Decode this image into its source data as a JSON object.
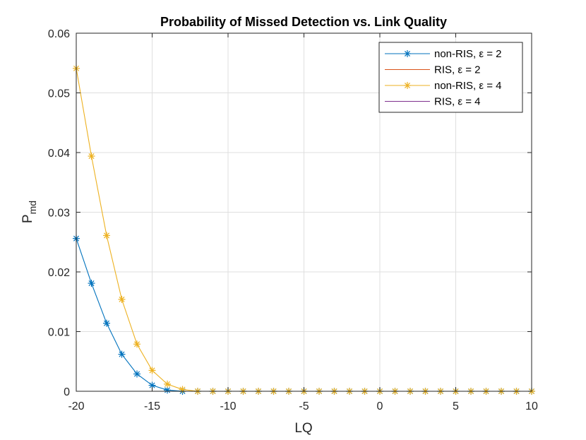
{
  "chart_data": {
    "type": "line",
    "title": "Probability of Missed Detection vs. Link Quality",
    "xlabel": "LQ",
    "ylabel_main": "P",
    "ylabel_sub": "md",
    "xlim": [
      -20,
      10
    ],
    "ylim": [
      0,
      0.06
    ],
    "xticks": [
      -20,
      -15,
      -10,
      -5,
      0,
      5,
      10
    ],
    "xtick_labels": [
      "-20",
      "-15",
      "-10",
      "-5",
      "0",
      "5",
      "10"
    ],
    "yticks": [
      0,
      0.01,
      0.02,
      0.03,
      0.04,
      0.05,
      0.06
    ],
    "ytick_labels": [
      "0",
      "0.01",
      "0.02",
      "0.03",
      "0.04",
      "0.05",
      "0.06"
    ],
    "grid": true,
    "legend_position": "top-right",
    "x": [
      -20,
      -19,
      -18,
      -17,
      -16,
      -15,
      -14,
      -13,
      -12,
      -11,
      -10,
      -9,
      -8,
      -7,
      -6,
      -5,
      -4,
      -3,
      -2,
      -1,
      0,
      1,
      2,
      3,
      4,
      5,
      6,
      7,
      8,
      9,
      10
    ],
    "series": [
      {
        "name": "non-RIS, ε = 2",
        "color": "#0072BD",
        "marker": "asterisk",
        "values": [
          0.0256,
          0.0181,
          0.0114,
          0.0062,
          0.0029,
          0.001,
          0.0002,
          0,
          0,
          0,
          0,
          0,
          0,
          0,
          0,
          0,
          0,
          0,
          0,
          0,
          0,
          0,
          0,
          0,
          0,
          0,
          0,
          0,
          0,
          0,
          0
        ]
      },
      {
        "name": "RIS, ε = 2",
        "color": "#D95319",
        "marker": "none",
        "values": [
          0,
          0,
          0,
          0,
          0,
          0,
          0,
          0,
          0,
          0,
          0,
          0,
          0,
          0,
          0,
          0,
          0,
          0,
          0,
          0,
          0,
          0,
          0,
          0,
          0,
          0,
          0,
          0,
          0,
          0,
          0
        ]
      },
      {
        "name": "non-RIS, ε = 4",
        "color": "#EDB120",
        "marker": "asterisk",
        "values": [
          0.0541,
          0.0394,
          0.0261,
          0.0154,
          0.0079,
          0.0035,
          0.0012,
          0.0003,
          0,
          0,
          0,
          0,
          0,
          0,
          0,
          0,
          0,
          0,
          0,
          0,
          0,
          0,
          0,
          0,
          0,
          0,
          0,
          0,
          0,
          0,
          0
        ]
      },
      {
        "name": "RIS, ε = 4",
        "color": "#7E2F8E",
        "marker": "none",
        "values": [
          0,
          0,
          0,
          0,
          0,
          0,
          0,
          0,
          0,
          0,
          0,
          0,
          0,
          0,
          0,
          0,
          0,
          0,
          0,
          0,
          0,
          0,
          0,
          0,
          0,
          0,
          0,
          0,
          0,
          0,
          0
        ]
      }
    ]
  }
}
